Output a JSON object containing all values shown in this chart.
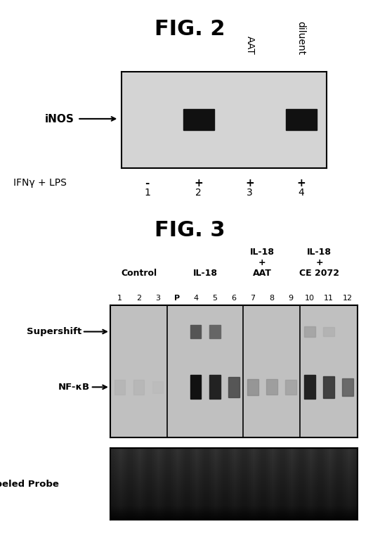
{
  "fig_title_2": "FIG. 2",
  "fig_title_3": "FIG. 3",
  "fig2": {
    "lanes": 4,
    "lane_labels": [
      "1",
      "2",
      "3",
      "4"
    ],
    "ifn_labels": [
      "-",
      "+",
      "+",
      "+"
    ],
    "col_headers": [
      "",
      "",
      "AAT",
      "diluent"
    ],
    "inos_label": "iNOS",
    "ifn_row_label": "IFNγ + LPS",
    "band_lanes": [
      1,
      3
    ],
    "gel_bg": "#d4d4d4",
    "band_color": "#111111"
  },
  "fig3": {
    "col_group_labels": [
      "Control",
      "IL-18",
      "IL-18\n+\nAAT",
      "IL-18\n+\nCE 2072"
    ],
    "lane_labels": [
      "1",
      "2",
      "3",
      "P",
      "4",
      "5",
      "6",
      "7",
      "8",
      "9",
      "10",
      "11",
      "12"
    ],
    "supershift_label": "Supershift",
    "nfkb_label": "NF-κB",
    "probe_label": "Labeled Probe"
  },
  "bg_color": "#ffffff",
  "text_color": "#000000"
}
